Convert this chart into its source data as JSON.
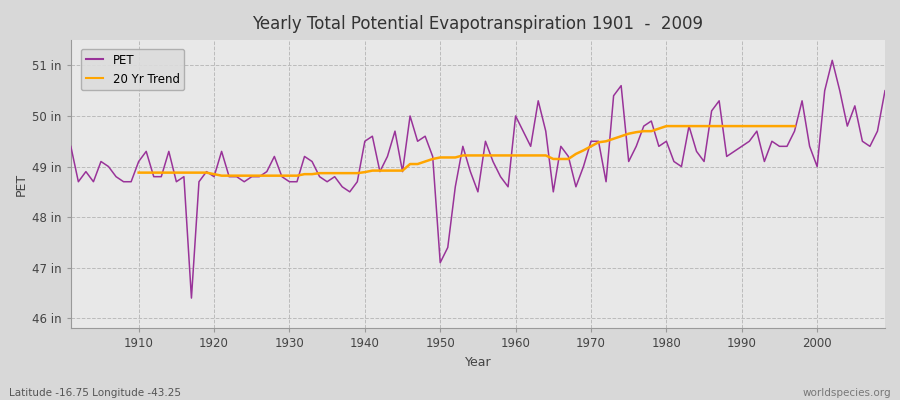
{
  "title": "Yearly Total Potential Evapotranspiration 1901  -  2009",
  "ylabel": "PET",
  "xlabel": "Year",
  "footnote_left": "Latitude -16.75 Longitude -43.25",
  "footnote_right": "worldspecies.org",
  "pet_color": "#993399",
  "trend_color": "#FFA500",
  "bg_color": "#E8E8E8",
  "fig_bg": "#D8D8D8",
  "ylim": [
    45.8,
    51.5
  ],
  "yticks": [
    46,
    47,
    48,
    49,
    50,
    51
  ],
  "ytick_labels": [
    "46 in",
    "47 in",
    "48 in",
    "49 in",
    "50 in",
    "51 in"
  ],
  "xticks": [
    1910,
    1920,
    1930,
    1940,
    1950,
    1960,
    1970,
    1980,
    1990,
    2000
  ],
  "xmin": 1901,
  "xmax": 2009,
  "years": [
    1901,
    1902,
    1903,
    1904,
    1905,
    1906,
    1907,
    1908,
    1909,
    1910,
    1911,
    1912,
    1913,
    1914,
    1915,
    1916,
    1917,
    1918,
    1919,
    1920,
    1921,
    1922,
    1923,
    1924,
    1925,
    1926,
    1927,
    1928,
    1929,
    1930,
    1931,
    1932,
    1933,
    1934,
    1935,
    1936,
    1937,
    1938,
    1939,
    1940,
    1941,
    1942,
    1943,
    1944,
    1945,
    1946,
    1947,
    1948,
    1949,
    1950,
    1951,
    1952,
    1953,
    1954,
    1955,
    1956,
    1957,
    1958,
    1959,
    1960,
    1961,
    1962,
    1963,
    1964,
    1965,
    1966,
    1967,
    1968,
    1969,
    1970,
    1971,
    1972,
    1973,
    1974,
    1975,
    1976,
    1977,
    1978,
    1979,
    1980,
    1981,
    1982,
    1983,
    1984,
    1985,
    1986,
    1987,
    1988,
    1989,
    1990,
    1991,
    1992,
    1993,
    1994,
    1995,
    1996,
    1997,
    1998,
    1999,
    2000,
    2001,
    2002,
    2003,
    2004,
    2005,
    2006,
    2007,
    2008,
    2009
  ],
  "pet": [
    49.4,
    48.7,
    48.9,
    48.7,
    49.1,
    49.0,
    48.8,
    48.7,
    48.7,
    49.1,
    49.3,
    48.8,
    48.8,
    49.3,
    48.7,
    48.8,
    46.4,
    48.7,
    48.9,
    48.8,
    49.3,
    48.8,
    48.8,
    48.7,
    48.8,
    48.8,
    48.9,
    49.2,
    48.8,
    48.7,
    48.7,
    49.2,
    49.1,
    48.8,
    48.7,
    48.8,
    48.6,
    48.5,
    48.7,
    49.5,
    49.6,
    48.9,
    49.2,
    49.7,
    48.9,
    50.0,
    49.5,
    49.6,
    49.2,
    47.1,
    47.4,
    48.6,
    49.4,
    48.9,
    48.5,
    49.5,
    49.1,
    48.8,
    48.6,
    50.0,
    49.7,
    49.4,
    50.3,
    49.7,
    48.5,
    49.4,
    49.2,
    48.6,
    49.0,
    49.5,
    49.5,
    48.7,
    50.4,
    50.6,
    49.1,
    49.4,
    49.8,
    49.9,
    49.4,
    49.5,
    49.1,
    49.0,
    49.8,
    49.3,
    49.1,
    50.1,
    50.3,
    49.2,
    49.3,
    49.4,
    49.5,
    49.7,
    49.1,
    49.5,
    49.4,
    49.4,
    49.7,
    50.3,
    49.4,
    49.0,
    50.5,
    51.1,
    50.5,
    49.8,
    50.2,
    49.5,
    49.4,
    49.7,
    50.5
  ],
  "trend": [
    null,
    null,
    null,
    null,
    null,
    null,
    null,
    null,
    null,
    48.88,
    48.88,
    48.88,
    48.88,
    48.88,
    48.88,
    48.88,
    48.88,
    48.88,
    48.88,
    48.85,
    48.82,
    48.82,
    48.82,
    48.82,
    48.82,
    48.82,
    48.82,
    48.82,
    48.82,
    48.82,
    48.82,
    48.85,
    48.85,
    48.87,
    48.87,
    48.87,
    48.87,
    48.87,
    48.87,
    48.89,
    48.92,
    48.92,
    48.92,
    48.92,
    48.92,
    49.05,
    49.05,
    49.1,
    49.15,
    49.18,
    49.18,
    49.18,
    49.22,
    49.22,
    49.22,
    49.22,
    49.22,
    49.22,
    49.22,
    49.22,
    49.22,
    49.22,
    49.22,
    49.22,
    49.15,
    49.15,
    49.15,
    49.25,
    49.32,
    49.4,
    49.48,
    49.5,
    49.55,
    49.6,
    49.65,
    49.68,
    49.7,
    49.7,
    49.75,
    49.8,
    49.8,
    49.8,
    49.8,
    49.8,
    49.8,
    49.8,
    49.8,
    49.8,
    49.8,
    49.8,
    49.8,
    49.8,
    49.8,
    49.8,
    49.8,
    49.8,
    49.8,
    null,
    null,
    null,
    null,
    null,
    null,
    null,
    null,
    null,
    null,
    null
  ]
}
